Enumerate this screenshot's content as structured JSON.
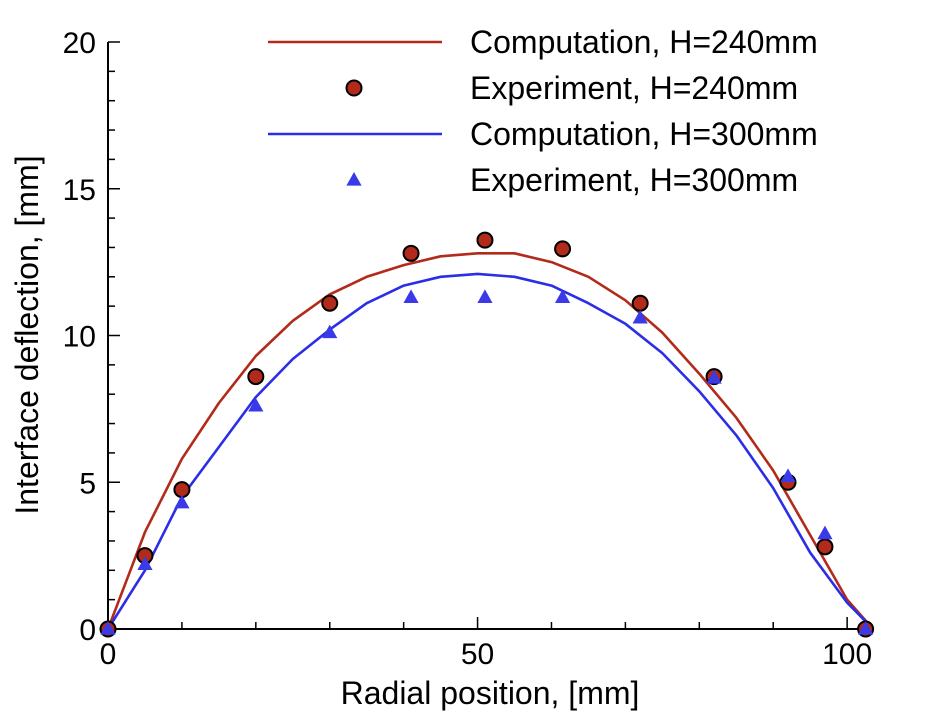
{
  "chart_data": {
    "type": "line",
    "xlabel": "Radial position, [mm]",
    "ylabel": "Interface deflection, [mm]",
    "xlim": [
      0,
      103.5
    ],
    "ylim": [
      0,
      20
    ],
    "x_ticks": [
      0,
      50,
      100
    ],
    "y_ticks": [
      0,
      5,
      10,
      15,
      20
    ],
    "x_tick_labels": [
      "0",
      "50",
      "100"
    ],
    "y_tick_labels": [
      "0",
      "5",
      "10",
      "15",
      "20"
    ],
    "x_minor_step": 10,
    "y_minor_step": 1,
    "grid": false,
    "legend_position": "top-right",
    "series": [
      {
        "name": "Computation, H=240mm",
        "kind": "line",
        "color": "#b22a1a",
        "x": [
          0,
          5,
          10,
          15,
          20,
          25,
          30,
          35,
          40,
          45,
          50,
          55,
          60,
          65,
          70,
          75,
          80,
          85,
          90,
          95,
          100,
          103.5
        ],
        "y": [
          0,
          3.3,
          5.8,
          7.7,
          9.3,
          10.5,
          11.4,
          12.0,
          12.4,
          12.7,
          12.8,
          12.8,
          12.5,
          12.0,
          11.2,
          10.1,
          8.7,
          7.2,
          5.4,
          3.2,
          1.0,
          0
        ]
      },
      {
        "name": "Experiment, H=240mm",
        "kind": "marker-circle",
        "color": "#b22a1a",
        "x": [
          0,
          5,
          10,
          20,
          30,
          41,
          51,
          61.5,
          72,
          82,
          92,
          97,
          102.5
        ],
        "y": [
          0,
          2.5,
          4.75,
          8.6,
          11.1,
          12.8,
          13.25,
          12.95,
          11.1,
          8.6,
          5.0,
          2.8,
          0
        ]
      },
      {
        "name": "Computation, H=300mm",
        "kind": "line",
        "color": "#2b2ee6",
        "x": [
          0,
          5,
          10,
          15,
          20,
          25,
          30,
          35,
          40,
          45,
          50,
          55,
          60,
          65,
          70,
          75,
          80,
          85,
          90,
          95,
          100,
          103.5
        ],
        "y": [
          0,
          2.0,
          4.5,
          6.2,
          7.9,
          9.2,
          10.2,
          11.1,
          11.7,
          12.0,
          12.1,
          12.0,
          11.7,
          11.1,
          10.4,
          9.4,
          8.1,
          6.6,
          4.8,
          2.6,
          0.9,
          0
        ]
      },
      {
        "name": "Experiment, H=300mm",
        "kind": "marker-triangle",
        "color": "#3a3ae8",
        "x": [
          0,
          5,
          10,
          20,
          30,
          41,
          51,
          61.5,
          72,
          82,
          92,
          97,
          102.5
        ],
        "y": [
          0,
          2.2,
          4.3,
          7.6,
          10.1,
          11.3,
          11.3,
          11.3,
          10.6,
          8.55,
          5.2,
          3.25,
          0
        ]
      }
    ]
  }
}
